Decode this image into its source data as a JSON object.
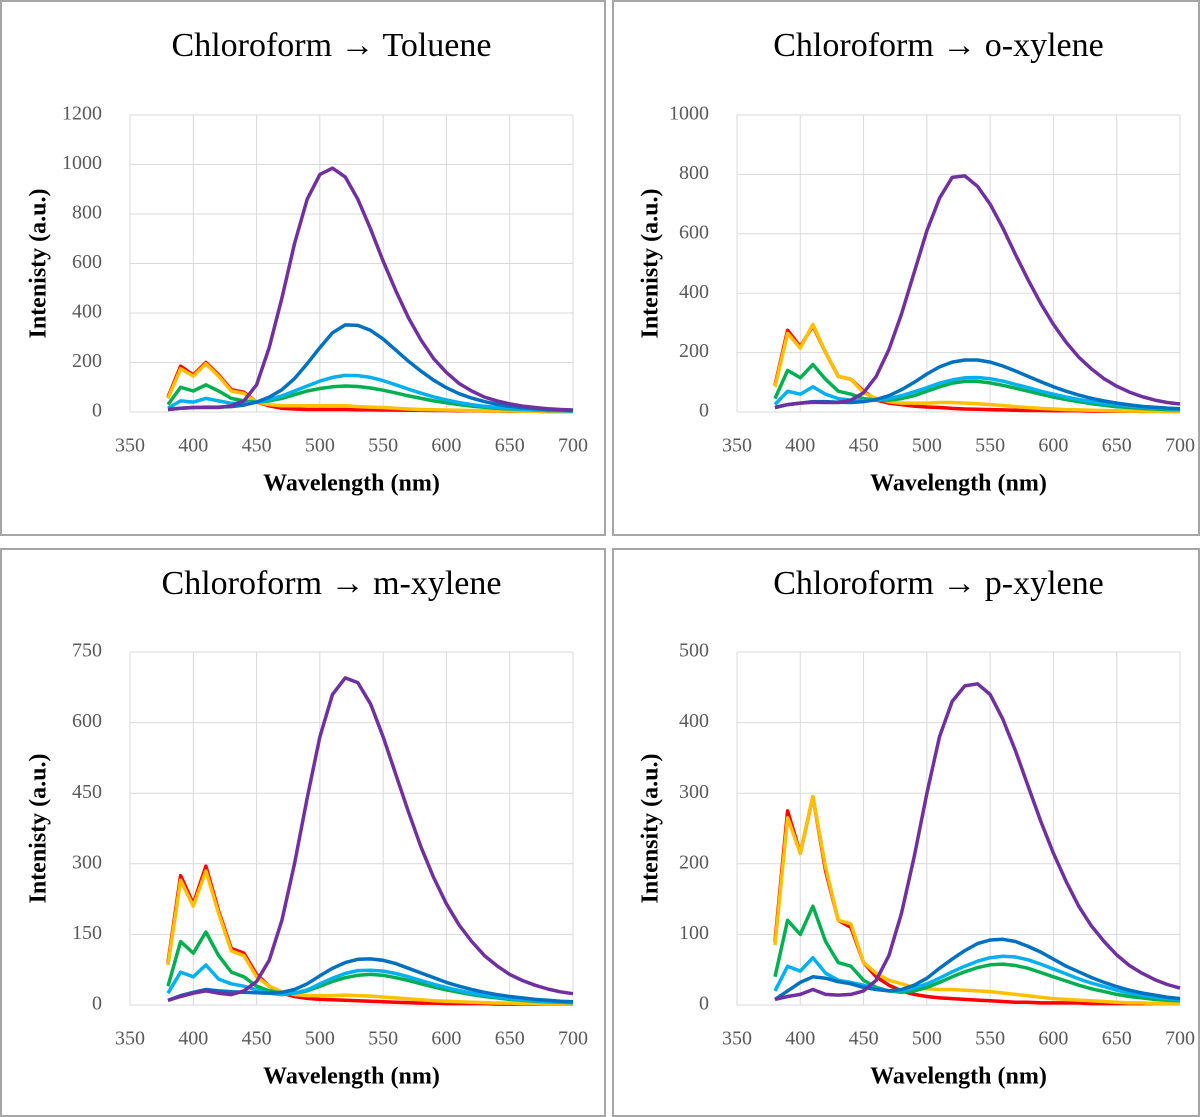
{
  "chart_data": [
    {
      "type": "line",
      "title": "Chloroform → Toluene",
      "xlabel": "Wavelength (nm)",
      "ylabel": "Intenisty (a.u.)",
      "x": [
        380,
        390,
        400,
        410,
        420,
        430,
        440,
        450,
        460,
        470,
        480,
        490,
        500,
        510,
        520,
        530,
        540,
        550,
        560,
        570,
        580,
        590,
        600,
        610,
        620,
        630,
        640,
        650,
        660,
        670,
        680,
        690,
        700
      ],
      "xlim": [
        350,
        700
      ],
      "xticks": [
        350,
        400,
        450,
        500,
        550,
        600,
        650,
        700
      ],
      "ylim": [
        0,
        1200
      ],
      "yticks": [
        0,
        200,
        400,
        600,
        800,
        1000,
        1200
      ],
      "grid": true,
      "series": [
        {
          "color": "#ff0000",
          "values": [
            60,
            185,
            150,
            200,
            150,
            90,
            80,
            40,
            25,
            15,
            12,
            10,
            10,
            10,
            10,
            9,
            9,
            8,
            8,
            7,
            7,
            6,
            6,
            5,
            5,
            4,
            4,
            3,
            3,
            3,
            2,
            2,
            2
          ]
        },
        {
          "color": "#ffc000",
          "values": [
            55,
            175,
            145,
            195,
            145,
            85,
            75,
            40,
            30,
            25,
            25,
            25,
            25,
            25,
            25,
            22,
            20,
            18,
            15,
            12,
            10,
            9,
            8,
            7,
            6,
            5,
            4,
            4,
            3,
            3,
            2,
            2,
            2
          ]
        },
        {
          "color": "#00b050",
          "values": [
            30,
            100,
            85,
            110,
            85,
            55,
            45,
            40,
            45,
            55,
            70,
            85,
            95,
            102,
            105,
            103,
            97,
            88,
            77,
            65,
            55,
            45,
            37,
            30,
            24,
            19,
            15,
            12,
            10,
            8,
            6,
            5,
            4
          ]
        },
        {
          "color": "#00b0f0",
          "values": [
            15,
            45,
            40,
            55,
            45,
            35,
            35,
            40,
            50,
            65,
            85,
            105,
            125,
            140,
            148,
            147,
            140,
            127,
            110,
            92,
            76,
            61,
            49,
            38,
            30,
            23,
            18,
            14,
            11,
            8,
            6,
            5,
            4
          ]
        },
        {
          "color": "#0070c0",
          "values": [
            10,
            15,
            18,
            20,
            20,
            22,
            28,
            40,
            60,
            90,
            135,
            195,
            260,
            320,
            352,
            350,
            330,
            295,
            250,
            205,
            165,
            128,
            98,
            74,
            56,
            42,
            31,
            23,
            17,
            13,
            10,
            8,
            6
          ]
        },
        {
          "color": "#7030a0",
          "values": [
            10,
            15,
            18,
            18,
            18,
            25,
            45,
            110,
            260,
            460,
            680,
            860,
            960,
            985,
            950,
            860,
            740,
            610,
            490,
            380,
            290,
            215,
            160,
            115,
            85,
            60,
            45,
            33,
            24,
            18,
            13,
            10,
            8
          ]
        }
      ]
    },
    {
      "type": "line",
      "title": "Chloroform → o-xylene",
      "xlabel": "Wavelength (nm)",
      "ylabel": "Intenisty (a.u.)",
      "x": [
        380,
        390,
        400,
        410,
        420,
        430,
        440,
        450,
        460,
        470,
        480,
        490,
        500,
        510,
        520,
        530,
        540,
        550,
        560,
        570,
        580,
        590,
        600,
        610,
        620,
        630,
        640,
        650,
        660,
        670,
        680,
        690,
        700
      ],
      "xlim": [
        350,
        700
      ],
      "xticks": [
        350,
        400,
        450,
        500,
        550,
        600,
        650,
        700
      ],
      "ylim": [
        0,
        1000
      ],
      "yticks": [
        0,
        200,
        400,
        600,
        800,
        1000
      ],
      "grid": true,
      "series": [
        {
          "color": "#ff0000",
          "values": [
            90,
            275,
            220,
            290,
            200,
            120,
            110,
            70,
            40,
            30,
            25,
            20,
            17,
            15,
            12,
            10,
            9,
            8,
            7,
            6,
            5,
            5,
            4,
            4,
            4,
            3,
            3,
            3,
            3,
            2,
            2,
            2,
            2
          ]
        },
        {
          "color": "#ffc000",
          "values": [
            85,
            265,
            215,
            295,
            200,
            120,
            110,
            65,
            45,
            35,
            30,
            30,
            30,
            32,
            32,
            30,
            28,
            25,
            22,
            18,
            15,
            12,
            10,
            8,
            7,
            6,
            5,
            4,
            3,
            3,
            2,
            2,
            2
          ]
        },
        {
          "color": "#00b050",
          "values": [
            45,
            140,
            115,
            160,
            110,
            70,
            60,
            45,
            40,
            40,
            45,
            55,
            70,
            85,
            97,
            103,
            103,
            98,
            90,
            80,
            70,
            60,
            50,
            42,
            35,
            28,
            23,
            18,
            15,
            12,
            10,
            8,
            7
          ]
        },
        {
          "color": "#00b0f0",
          "values": [
            25,
            70,
            60,
            85,
            60,
            45,
            40,
            38,
            40,
            45,
            55,
            68,
            82,
            97,
            108,
            115,
            116,
            112,
            104,
            93,
            82,
            70,
            60,
            50,
            42,
            35,
            29,
            24,
            20,
            16,
            13,
            11,
            9
          ]
        },
        {
          "color": "#0070c0",
          "values": [
            15,
            25,
            30,
            35,
            35,
            33,
            32,
            35,
            42,
            55,
            75,
            100,
            128,
            152,
            168,
            175,
            175,
            168,
            155,
            138,
            120,
            102,
            85,
            70,
            57,
            46,
            37,
            30,
            24,
            19,
            16,
            13,
            11
          ]
        },
        {
          "color": "#7030a0",
          "values": [
            15,
            25,
            30,
            33,
            32,
            32,
            40,
            65,
            120,
            210,
            330,
            470,
            610,
            720,
            790,
            795,
            760,
            700,
            620,
            530,
            445,
            365,
            295,
            235,
            185,
            145,
            112,
            87,
            67,
            52,
            40,
            32,
            27
          ]
        }
      ]
    },
    {
      "type": "line",
      "title": "Chloroform → m-xylene",
      "xlabel": "Wavelength (nm)",
      "ylabel": "Intenisty (a.u.)",
      "x": [
        380,
        390,
        400,
        410,
        420,
        430,
        440,
        450,
        460,
        470,
        480,
        490,
        500,
        510,
        520,
        530,
        540,
        550,
        560,
        570,
        580,
        590,
        600,
        610,
        620,
        630,
        640,
        650,
        660,
        670,
        680,
        690,
        700
      ],
      "xlim": [
        350,
        700
      ],
      "xticks": [
        350,
        400,
        450,
        500,
        550,
        600,
        650,
        700
      ],
      "ylim": [
        0,
        750
      ],
      "yticks": [
        0,
        150,
        300,
        450,
        600,
        750
      ],
      "grid": true,
      "series": [
        {
          "color": "#ff0000",
          "values": [
            90,
            275,
            215,
            295,
            200,
            120,
            110,
            65,
            40,
            25,
            18,
            14,
            12,
            11,
            10,
            9,
            8,
            7,
            6,
            5,
            4,
            4,
            3,
            3,
            3,
            3,
            2,
            2,
            2,
            2,
            2,
            2,
            2
          ]
        },
        {
          "color": "#ffc000",
          "values": [
            85,
            265,
            210,
            285,
            195,
            115,
            105,
            60,
            40,
            28,
            22,
            20,
            20,
            20,
            21,
            20,
            19,
            17,
            15,
            13,
            11,
            9,
            8,
            7,
            6,
            5,
            4,
            4,
            3,
            3,
            2,
            2,
            2
          ]
        },
        {
          "color": "#00b050",
          "values": [
            40,
            135,
            110,
            155,
            105,
            70,
            60,
            40,
            30,
            25,
            25,
            30,
            40,
            50,
            58,
            63,
            65,
            63,
            58,
            52,
            45,
            38,
            32,
            27,
            22,
            18,
            15,
            12,
            10,
            8,
            7,
            6,
            5
          ]
        },
        {
          "color": "#00b0f0",
          "values": [
            25,
            70,
            60,
            85,
            55,
            45,
            40,
            32,
            25,
            22,
            25,
            32,
            45,
            57,
            67,
            73,
            74,
            72,
            67,
            60,
            52,
            44,
            37,
            31,
            25,
            21,
            17,
            14,
            11,
            9,
            8,
            6,
            5
          ]
        },
        {
          "color": "#0070c0",
          "values": [
            10,
            20,
            27,
            33,
            30,
            28,
            27,
            26,
            25,
            27,
            33,
            45,
            62,
            78,
            90,
            97,
            98,
            95,
            88,
            78,
            68,
            58,
            48,
            40,
            33,
            27,
            22,
            18,
            15,
            12,
            10,
            8,
            7
          ]
        },
        {
          "color": "#7030a0",
          "values": [
            10,
            18,
            25,
            30,
            25,
            22,
            30,
            50,
            95,
            180,
            300,
            440,
            570,
            660,
            695,
            685,
            640,
            570,
            490,
            410,
            335,
            270,
            215,
            170,
            135,
            105,
            83,
            65,
            52,
            42,
            34,
            28,
            24
          ]
        }
      ]
    },
    {
      "type": "line",
      "title": "Chloroform → p-xylene",
      "xlabel": "Wavelength (nm)",
      "ylabel": "Intensity (a.u.)",
      "x": [
        380,
        390,
        400,
        410,
        420,
        430,
        440,
        450,
        460,
        470,
        480,
        490,
        500,
        510,
        520,
        530,
        540,
        550,
        560,
        570,
        580,
        590,
        600,
        610,
        620,
        630,
        640,
        650,
        660,
        670,
        680,
        690,
        700
      ],
      "xlim": [
        350,
        700
      ],
      "xticks": [
        350,
        400,
        450,
        500,
        550,
        600,
        650,
        700
      ],
      "ylim": [
        0,
        500
      ],
      "yticks": [
        0,
        100,
        200,
        300,
        400,
        500
      ],
      "grid": true,
      "series": [
        {
          "color": "#ff0000",
          "values": [
            90,
            275,
            215,
            295,
            190,
            120,
            110,
            60,
            40,
            28,
            20,
            15,
            12,
            10,
            9,
            8,
            7,
            6,
            5,
            4,
            4,
            3,
            3,
            3,
            3,
            2,
            2,
            2,
            2,
            2,
            2,
            2,
            2
          ]
        },
        {
          "color": "#ffc000",
          "values": [
            85,
            265,
            215,
            295,
            195,
            120,
            115,
            60,
            45,
            35,
            30,
            25,
            23,
            22,
            22,
            21,
            20,
            19,
            17,
            15,
            13,
            11,
            9,
            8,
            7,
            6,
            5,
            4,
            3,
            3,
            2,
            2,
            2
          ]
        },
        {
          "color": "#00b050",
          "values": [
            40,
            120,
            100,
            140,
            90,
            60,
            55,
            35,
            25,
            20,
            18,
            20,
            25,
            32,
            40,
            47,
            53,
            57,
            58,
            56,
            52,
            46,
            40,
            34,
            28,
            23,
            19,
            15,
            12,
            10,
            8,
            7,
            6
          ]
        },
        {
          "color": "#00b0f0",
          "values": [
            20,
            55,
            48,
            67,
            45,
            35,
            32,
            28,
            23,
            20,
            20,
            24,
            30,
            38,
            47,
            55,
            62,
            67,
            69,
            68,
            64,
            58,
            51,
            44,
            37,
            31,
            26,
            21,
            17,
            14,
            11,
            9,
            8
          ]
        },
        {
          "color": "#0070c0",
          "values": [
            8,
            20,
            32,
            40,
            38,
            33,
            30,
            25,
            22,
            20,
            22,
            28,
            38,
            52,
            65,
            77,
            87,
            92,
            93,
            90,
            83,
            75,
            65,
            55,
            47,
            39,
            32,
            26,
            21,
            17,
            14,
            11,
            9
          ]
        },
        {
          "color": "#7030a0",
          "values": [
            8,
            12,
            15,
            22,
            15,
            14,
            15,
            20,
            35,
            70,
            130,
            210,
            300,
            380,
            430,
            452,
            455,
            440,
            405,
            360,
            310,
            260,
            215,
            175,
            140,
            112,
            90,
            71,
            56,
            45,
            36,
            29,
            24
          ]
        }
      ]
    }
  ]
}
